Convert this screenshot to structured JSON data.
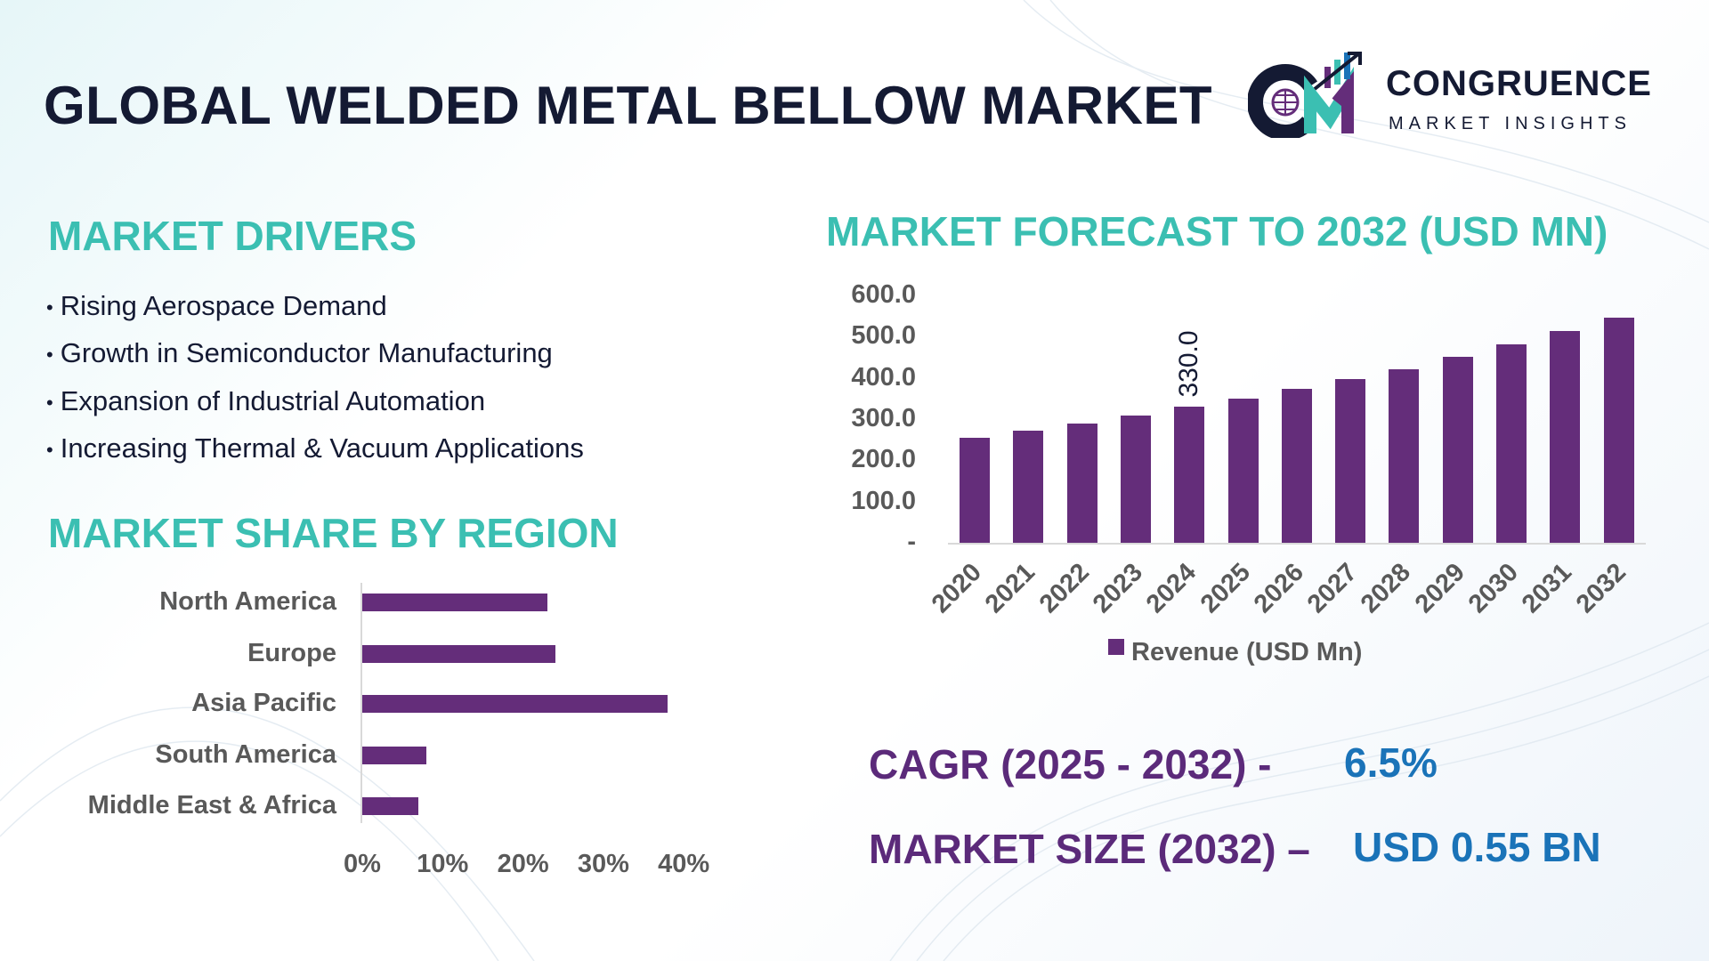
{
  "header": {
    "title": "GLOBAL WELDED METAL BELLOW MARKET",
    "logo": {
      "name": "CONGRUENCE",
      "tagline": "MARKET INSIGHTS",
      "initials": "CM"
    }
  },
  "drivers": {
    "heading": "MARKET DRIVERS",
    "items": [
      "Rising Aerospace Demand",
      "Growth in Semiconductor Manufacturing",
      "Expansion of Industrial Automation",
      "Increasing Thermal & Vacuum Applications"
    ]
  },
  "kpis": {
    "cagr_label": "CAGR (2025 - 2032) -",
    "cagr_value": "6.5%",
    "size_label": "MARKET SIZE (2032) –",
    "size_value": "USD 0.55 BN"
  },
  "colors": {
    "title": "#141a33",
    "heading": "#3bbfb2",
    "bar": "#642d7a",
    "kpi_label": "#5b2a7a",
    "kpi_value": "#1a73b8"
  },
  "chart_data": [
    {
      "type": "bar",
      "title": "MARKET FORECAST TO 2032 (USD MN)",
      "categories": [
        "2020",
        "2021",
        "2022",
        "2023",
        "2024",
        "2025",
        "2026",
        "2027",
        "2028",
        "2029",
        "2030",
        "2031",
        "2032"
      ],
      "series": [
        {
          "name": "Revenue (USD Mn)",
          "values": [
            255,
            272,
            289,
            309,
            330,
            350,
            373,
            397,
            420,
            452,
            481,
            513,
            547
          ]
        }
      ],
      "data_labels": [
        {
          "category": "2024",
          "text": "330.0"
        }
      ],
      "yticks": [
        "-",
        "100.0",
        "200.0",
        "300.0",
        "400.0",
        "500.0",
        "600.0"
      ],
      "ylim": [
        0,
        600
      ],
      "legend": "bottom",
      "grid": false
    },
    {
      "type": "bar",
      "orientation": "horizontal",
      "title": "MARKET SHARE BY REGION",
      "categories": [
        "North America",
        "Europe",
        "Asia Pacific",
        "South America",
        "Middle East & Africa"
      ],
      "values": [
        23,
        24,
        38,
        8,
        7
      ],
      "unit": "%",
      "xticks": [
        "0%",
        "10%",
        "20%",
        "30%",
        "40%"
      ],
      "xlim": [
        0,
        40
      ],
      "grid": false
    }
  ]
}
